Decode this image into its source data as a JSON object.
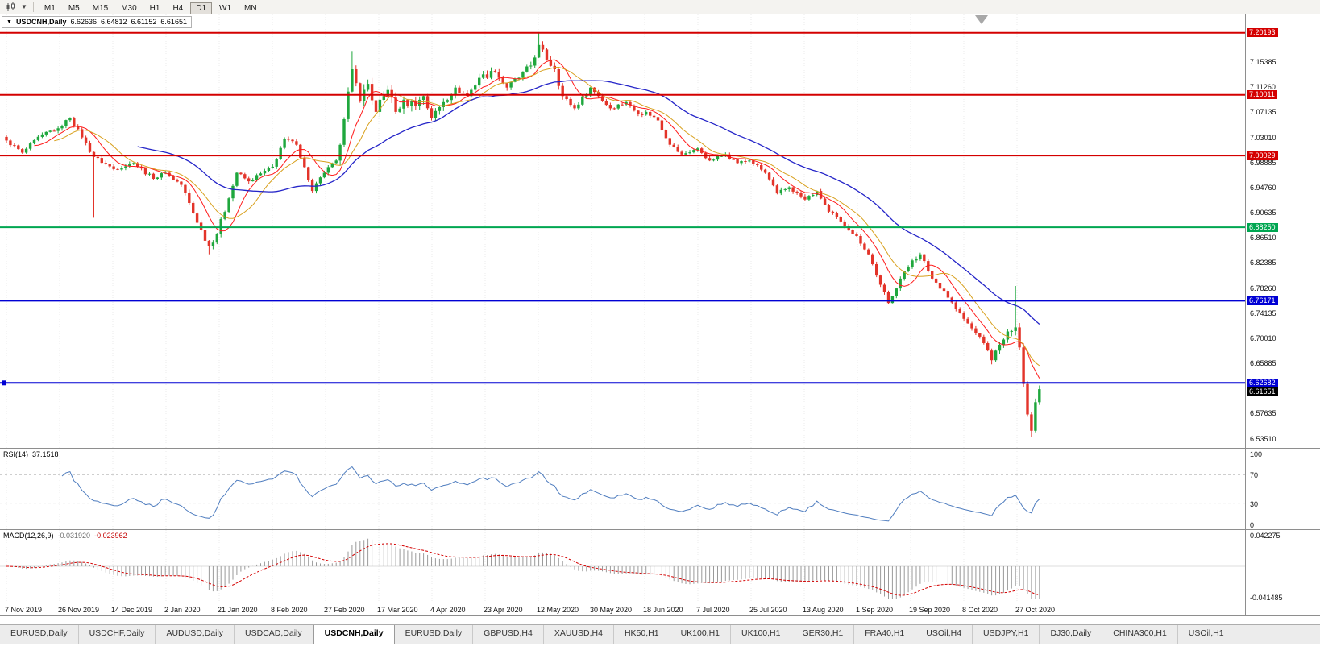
{
  "toolbar": {
    "icons": [
      "candlestick-chart-icon",
      "caret-down-icon"
    ],
    "timeframes": [
      {
        "label": "M1",
        "active": false
      },
      {
        "label": "M5",
        "active": false
      },
      {
        "label": "M15",
        "active": false
      },
      {
        "label": "M30",
        "active": false
      },
      {
        "label": "H1",
        "active": false
      },
      {
        "label": "H4",
        "active": false
      },
      {
        "label": "D1",
        "active": true
      },
      {
        "label": "W1",
        "active": false
      },
      {
        "label": "MN",
        "active": false
      }
    ]
  },
  "chart": {
    "symbol_header": {
      "collapse_icon": "▼",
      "symbol": "USDCNH,Daily",
      "open": "6.62636",
      "high": "6.64812",
      "low": "6.61152",
      "close": "6.61651"
    },
    "price_axis": {
      "ticks": [
        7.15385,
        7.1126,
        7.07135,
        7.0301,
        6.98885,
        6.9476,
        6.90635,
        6.8651,
        6.82385,
        6.7826,
        6.74135,
        6.7001,
        6.65885,
        6.57635,
        6.5351
      ]
    },
    "hlines": [
      {
        "value": 7.20193,
        "label": "7.20193",
        "color": "#d40000",
        "selected": false
      },
      {
        "value": 7.10011,
        "label": "7.10011",
        "color": "#d40000",
        "selected": false
      },
      {
        "value": 7.00029,
        "label": "7.00029",
        "color": "#d40000",
        "selected": false
      },
      {
        "value": 6.8825,
        "label": "6.88250",
        "color": "#00a651",
        "selected": false
      },
      {
        "value": 6.76171,
        "label": "6.76171",
        "color": "#0000d4",
        "selected": false
      },
      {
        "value": 6.62682,
        "label": "6.62682",
        "color": "#0000d4",
        "selected": true
      }
    ],
    "current_price": {
      "value": 6.61651,
      "label": "6.61651",
      "color": "#000000"
    },
    "date_axis": [
      "7 Nov 2019",
      "26 Nov 2019",
      "14 Dec 2019",
      "2 Jan 2020",
      "21 Jan 2020",
      "8 Feb 2020",
      "27 Feb 2020",
      "17 Mar 2020",
      "4 Apr 2020",
      "23 Apr 2020",
      "12 May 2020",
      "30 May 2020",
      "18 Jun 2020",
      "7 Jul 2020",
      "25 Jul 2020",
      "13 Aug 2020",
      "1 Sep 2020",
      "19 Sep 2020",
      "8 Oct 2020",
      "27 Oct 2020"
    ]
  },
  "chart_data": {
    "type": "candlestick",
    "bars": 261,
    "price_range": {
      "top": 7.232,
      "bottom": 6.52
    },
    "up_color": "#1fa73d",
    "down_color": "#e3342a",
    "noise_amp": 0.0032,
    "close_anchors": [
      [
        0,
        7.025
      ],
      [
        4,
        7.005
      ],
      [
        9,
        7.035
      ],
      [
        13,
        7.045
      ],
      [
        16,
        7.062
      ],
      [
        19,
        7.03
      ],
      [
        22,
        6.998
      ],
      [
        27,
        6.978
      ],
      [
        32,
        6.988
      ],
      [
        37,
        6.962
      ],
      [
        40,
        6.972
      ],
      [
        44,
        6.952
      ],
      [
        48,
        6.89
      ],
      [
        51,
        6.852
      ],
      [
        53,
        6.872
      ],
      [
        56,
        6.93
      ],
      [
        58,
        6.972
      ],
      [
        61,
        6.958
      ],
      [
        67,
        6.982
      ],
      [
        70,
        7.028
      ],
      [
        73,
        7.018
      ],
      [
        77,
        6.942
      ],
      [
        80,
        6.972
      ],
      [
        83,
        6.992
      ],
      [
        85,
        7.06
      ],
      [
        87,
        7.142
      ],
      [
        89,
        7.09
      ],
      [
        91,
        7.118
      ],
      [
        93,
        7.072
      ],
      [
        96,
        7.108
      ],
      [
        98,
        7.072
      ],
      [
        100,
        7.092
      ],
      [
        103,
        7.082
      ],
      [
        105,
        7.098
      ],
      [
        107,
        7.062
      ],
      [
        110,
        7.088
      ],
      [
        113,
        7.112
      ],
      [
        116,
        7.098
      ],
      [
        119,
        7.128
      ],
      [
        123,
        7.138
      ],
      [
        126,
        7.112
      ],
      [
        129,
        7.128
      ],
      [
        132,
        7.148
      ],
      [
        134,
        7.182
      ],
      [
        136,
        7.158
      ],
      [
        138,
        7.142
      ],
      [
        140,
        7.098
      ],
      [
        143,
        7.078
      ],
      [
        147,
        7.112
      ],
      [
        149,
        7.098
      ],
      [
        152,
        7.078
      ],
      [
        156,
        7.088
      ],
      [
        159,
        7.068
      ],
      [
        161,
        7.072
      ],
      [
        164,
        7.058
      ],
      [
        167,
        7.018
      ],
      [
        170,
        7.002
      ],
      [
        174,
        7.012
      ],
      [
        177,
        6.992
      ],
      [
        181,
        7.002
      ],
      [
        184,
        6.988
      ],
      [
        187,
        6.992
      ],
      [
        191,
        6.972
      ],
      [
        194,
        6.938
      ],
      [
        197,
        6.948
      ],
      [
        201,
        6.928
      ],
      [
        204,
        6.942
      ],
      [
        207,
        6.908
      ],
      [
        210,
        6.892
      ],
      [
        214,
        6.868
      ],
      [
        217,
        6.838
      ],
      [
        220,
        6.788
      ],
      [
        222,
        6.758
      ],
      [
        225,
        6.798
      ],
      [
        228,
        6.828
      ],
      [
        230,
        6.838
      ],
      [
        233,
        6.798
      ],
      [
        236,
        6.778
      ],
      [
        239,
        6.748
      ],
      [
        241,
        6.732
      ],
      [
        244,
        6.708
      ],
      [
        246,
        6.692
      ],
      [
        248,
        6.664
      ],
      [
        251,
        6.698
      ],
      [
        253,
        6.712
      ],
      [
        254,
        6.718
      ],
      [
        255,
        6.685
      ],
      [
        256,
        6.625
      ],
      [
        257,
        6.575
      ],
      [
        258,
        6.548
      ],
      [
        259,
        6.595
      ],
      [
        260,
        6.6165
      ]
    ],
    "wick_events": [
      {
        "bar": 22,
        "low": 6.898
      },
      {
        "bar": 51,
        "low": 6.838
      },
      {
        "bar": 87,
        "high": 7.172
      },
      {
        "bar": 134,
        "high": 7.202
      },
      {
        "bar": 135,
        "high": 7.188
      },
      {
        "bar": 254,
        "high": 6.786
      },
      {
        "bar": 258,
        "low": 6.538
      }
    ],
    "volatility_zones": [
      {
        "from": 44,
        "to": 58,
        "amp": 0.005
      },
      {
        "from": 84,
        "to": 105,
        "amp": 0.0085
      },
      {
        "from": 106,
        "to": 140,
        "amp": 0.0055
      },
      {
        "from": 248,
        "to": 260,
        "amp": 0.0065
      }
    ],
    "moving_averages": [
      {
        "period": 8,
        "color": "#ff1a1a",
        "width": 1
      },
      {
        "period": 13,
        "color": "#d8a01d",
        "width": 1
      },
      {
        "period": 34,
        "color": "#2424c8",
        "width": 1.3
      }
    ]
  },
  "rsi": {
    "label": "RSI(14)",
    "value": "37.1518",
    "axis_labels": [
      100,
      70,
      30,
      0
    ],
    "levels": [
      70,
      30
    ],
    "color": "#4f7dbf"
  },
  "macd": {
    "label": "MACD(12,26,9)",
    "main_value": "-0.031920",
    "signal_value": "-0.023962",
    "axis_top": "0.042275",
    "axis_bottom": "-0.041485",
    "range": 0.046,
    "hist_color": "#9a9a9a",
    "signal_color": "#d40000"
  },
  "tabs": [
    {
      "label": "EURUSD,Daily",
      "active": false
    },
    {
      "label": "USDCHF,Daily",
      "active": false
    },
    {
      "label": "AUDUSD,Daily",
      "active": false
    },
    {
      "label": "USDCAD,Daily",
      "active": false
    },
    {
      "label": "USDCNH,Daily",
      "active": true
    },
    {
      "label": "EURUSD,Daily",
      "active": false
    },
    {
      "label": "GBPUSD,H4",
      "active": false
    },
    {
      "label": "XAUUSD,H4",
      "active": false
    },
    {
      "label": "HK50,H1",
      "active": false
    },
    {
      "label": "UK100,H1",
      "active": false
    },
    {
      "label": "UK100,H1",
      "active": false
    },
    {
      "label": "GER30,H1",
      "active": false
    },
    {
      "label": "FRA40,H1",
      "active": false
    },
    {
      "label": "USOil,H4",
      "active": false
    },
    {
      "label": "USDJPY,H1",
      "active": false
    },
    {
      "label": "DJ30,Daily",
      "active": false
    },
    {
      "label": "CHINA300,H1",
      "active": false
    },
    {
      "label": "USOil,H1",
      "active": false
    }
  ]
}
